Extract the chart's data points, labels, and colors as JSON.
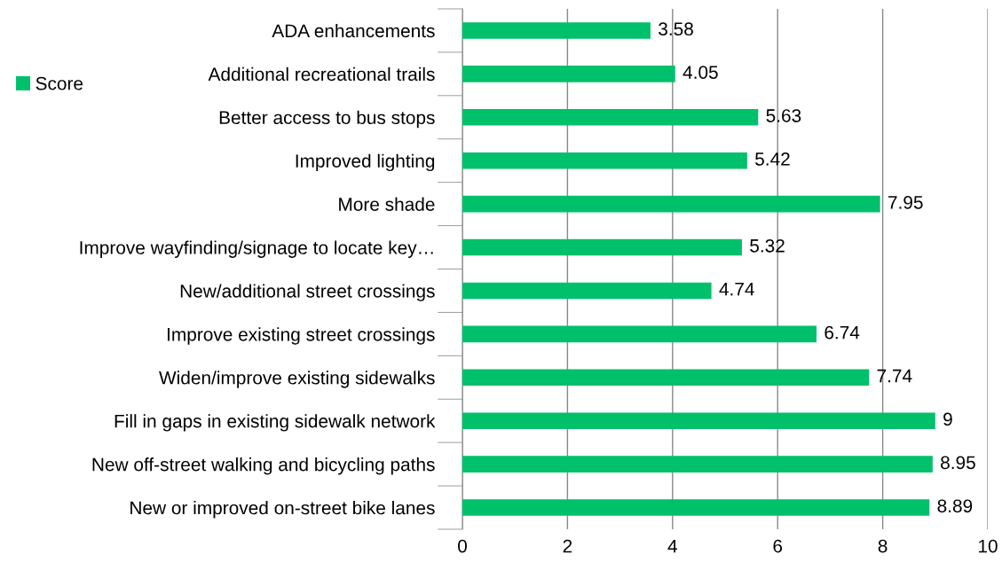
{
  "chart_data": {
    "type": "bar",
    "orientation": "horizontal",
    "categories": [
      "ADA enhancements",
      "Additional recreational trails",
      "Better access to bus stops",
      "Improved lighting",
      "More shade",
      "Improve wayfinding/signage to locate key…",
      "New/additional street crossings",
      "Improve existing street crossings",
      "Widen/improve existing sidewalks",
      "Fill in gaps in existing sidewalk network",
      "New off-street walking and bicycling paths",
      "New or improved on-street bike lanes"
    ],
    "series": [
      {
        "name": "Score",
        "color": "#00c06b",
        "values": [
          3.58,
          4.05,
          5.63,
          5.42,
          7.95,
          5.32,
          4.74,
          6.74,
          7.74,
          9,
          8.95,
          8.89
        ]
      }
    ],
    "xlim": [
      0,
      10
    ],
    "xticks": [
      0,
      2,
      4,
      6,
      8,
      10
    ],
    "grid": "x",
    "legend": "top left",
    "data_labels": true
  }
}
